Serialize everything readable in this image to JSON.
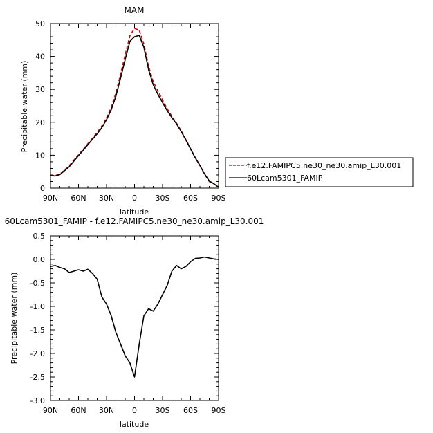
{
  "chart_data": [
    {
      "type": "line",
      "title": "MAM",
      "xlabel": "latitude",
      "ylabel": "Precipitable water (mm)",
      "xlim": [
        90,
        -90
      ],
      "ylim": [
        0,
        50
      ],
      "x_ticks": [
        "90N",
        "60N",
        "30N",
        "0",
        "30S",
        "60S",
        "90S"
      ],
      "y_ticks": [
        "0",
        "10",
        "20",
        "30",
        "40",
        "50"
      ],
      "x": [
        90,
        85,
        80,
        75,
        70,
        65,
        60,
        55,
        50,
        45,
        40,
        35,
        30,
        25,
        20,
        15,
        10,
        5,
        0,
        -5,
        -10,
        -15,
        -20,
        -25,
        -30,
        -35,
        -40,
        -45,
        -50,
        -55,
        -60,
        -65,
        -70,
        -75,
        -80,
        -85,
        -90
      ],
      "series": [
        {
          "name": "f.e12.FAMIPC5.ne30_ne30.amip_L30.001",
          "color": "#cc0000",
          "dash": "dashed",
          "values": [
            3.9,
            3.8,
            4.3,
            5.5,
            6.8,
            8.5,
            10.1,
            11.8,
            13.5,
            15.2,
            16.9,
            18.9,
            21.3,
            24.5,
            28.9,
            34.6,
            40.5,
            46.3,
            48.5,
            48.0,
            43.8,
            37.0,
            32.4,
            29.5,
            26.8,
            24.1,
            21.8,
            19.7,
            17.4,
            14.8,
            12.0,
            9.3,
            6.9,
            4.2,
            2.0,
            1.3,
            0.3
          ]
        },
        {
          "name": "60Lcam5301_FAMIP",
          "color": "#000000",
          "dash": "solid",
          "values": [
            3.8,
            3.7,
            4.1,
            5.3,
            6.5,
            8.2,
            9.9,
            11.5,
            13.2,
            14.9,
            16.5,
            18.4,
            20.8,
            23.8,
            27.9,
            33.4,
            39.1,
            44.6,
            46.0,
            46.4,
            42.8,
            36.0,
            31.4,
            28.5,
            26.0,
            23.5,
            21.4,
            19.5,
            17.2,
            14.6,
            11.9,
            9.2,
            6.9,
            4.3,
            2.2,
            1.3,
            0.3
          ]
        }
      ],
      "legend": "right"
    },
    {
      "type": "line",
      "title": "60Lcam5301_FAMIP - f.e12.FAMIPC5.ne30_ne30.amip_L30.001",
      "xlabel": "latitude",
      "ylabel": "Precipitable water (mm)",
      "xlim": [
        90,
        -90
      ],
      "ylim": [
        -3.0,
        0.5
      ],
      "x_ticks": [
        "90N",
        "60N",
        "30N",
        "0",
        "30S",
        "60S",
        "90S"
      ],
      "y_ticks": [
        "0.5",
        "0.0",
        "-0.5",
        "-1.0",
        "-1.5",
        "-2.0",
        "-2.5",
        "-3.0"
      ],
      "x": [
        90,
        85,
        80,
        75,
        70,
        65,
        60,
        55,
        50,
        45,
        40,
        35,
        30,
        25,
        20,
        15,
        10,
        5,
        0,
        -5,
        -10,
        -15,
        -20,
        -25,
        -30,
        -35,
        -40,
        -45,
        -50,
        -55,
        -60,
        -65,
        -70,
        -75,
        -80,
        -85,
        -90
      ],
      "series": [
        {
          "color": "#000000",
          "dash": "solid",
          "values": [
            -0.15,
            -0.13,
            -0.17,
            -0.2,
            -0.28,
            -0.25,
            -0.22,
            -0.25,
            -0.21,
            -0.3,
            -0.42,
            -0.8,
            -0.95,
            -1.2,
            -1.55,
            -1.8,
            -2.05,
            -2.2,
            -2.5,
            -1.8,
            -1.2,
            -1.05,
            -1.1,
            -0.95,
            -0.75,
            -0.55,
            -0.25,
            -0.13,
            -0.2,
            -0.15,
            -0.05,
            0.02,
            0.03,
            0.05,
            0.03,
            0.01,
            0.0
          ]
        }
      ]
    }
  ]
}
